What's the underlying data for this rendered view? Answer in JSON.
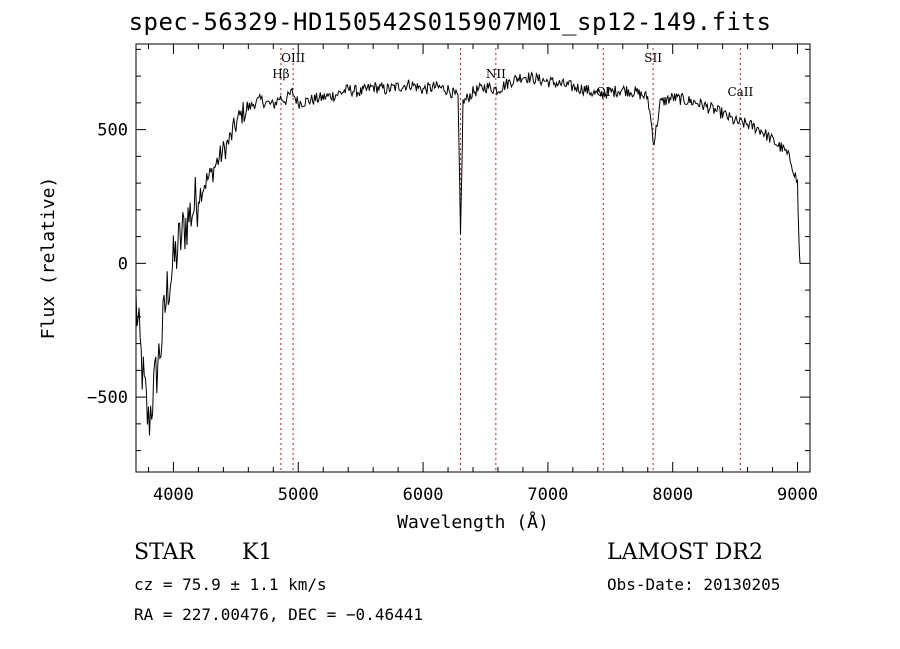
{
  "chart_data": {
    "type": "line",
    "title": "spec-56329-HD150542S015907M01_sp12-149.fits",
    "xlabel": "Wavelength (Å)",
    "ylabel": "Flux (relative)",
    "xlim": [
      3700,
      9100
    ],
    "ylim": [
      -780,
      820
    ],
    "x_ticks": [
      4000,
      5000,
      6000,
      7000,
      8000,
      9000
    ],
    "x_tick_labels": [
      "4000",
      "5000",
      "6000",
      "7000",
      "8000",
      "9000"
    ],
    "y_ticks": [
      -500,
      0,
      500
    ],
    "y_tick_labels": [
      "−500",
      "0",
      "500"
    ],
    "grid": false,
    "line_color": "#000000",
    "line_marker_color": "#b22222",
    "spectrum": {
      "name": "",
      "x": [
        3700,
        3750,
        3800,
        3850,
        3900,
        3950,
        4000,
        4050,
        4100,
        4150,
        4200,
        4250,
        4300,
        4350,
        4400,
        4450,
        4500,
        4550,
        4600,
        4650,
        4700,
        4750,
        4800,
        4850,
        4900,
        4950,
        5000,
        5100,
        5200,
        5300,
        5400,
        5500,
        5600,
        5700,
        5800,
        5900,
        6000,
        6100,
        6200,
        6280,
        6300,
        6320,
        6400,
        6500,
        6600,
        6700,
        6800,
        6900,
        7000,
        7100,
        7200,
        7300,
        7400,
        7500,
        7600,
        7700,
        7800,
        7850,
        7900,
        8000,
        8100,
        8200,
        8300,
        8400,
        8500,
        8600,
        8700,
        8800,
        8900,
        8950,
        9000,
        9010,
        9020
      ],
      "y": [
        -150,
        -400,
        -600,
        -450,
        -300,
        -100,
        0,
        80,
        150,
        200,
        250,
        300,
        330,
        380,
        420,
        460,
        520,
        560,
        580,
        600,
        610,
        600,
        590,
        620,
        610,
        640,
        600,
        610,
        620,
        630,
        650,
        640,
        660,
        650,
        660,
        670,
        650,
        660,
        650,
        620,
        100,
        600,
        640,
        660,
        650,
        680,
        700,
        690,
        680,
        670,
        660,
        650,
        630,
        640,
        650,
        640,
        620,
        450,
        600,
        620,
        610,
        600,
        580,
        560,
        530,
        520,
        500,
        460,
        420,
        380,
        300,
        100,
        0
      ]
    },
    "line_annotations": [
      {
        "label": "Hβ",
        "x": 4861
      },
      {
        "label": "OIII",
        "x": 4959
      },
      {
        "label": "",
        "x": 6300
      },
      {
        "label": "NII",
        "x": 6583
      },
      {
        "label": "OI",
        "x": 7444
      },
      {
        "label": "SII",
        "x": 7843
      },
      {
        "label": "CaII",
        "x": 8542
      }
    ],
    "annotation_labels": [
      "Hβ",
      "OIII",
      "NII",
      "OI",
      "SII",
      "CaII"
    ]
  },
  "info": {
    "class_label": "STAR",
    "subclass_label": "K1",
    "survey_label": "LAMOST DR2",
    "cz_text": "cz = 75.9 ± 1.1 km/s",
    "obs_date_text": "Obs-Date: 20130205",
    "coord_text": "RA = 227.00476, DEC =  −0.46441"
  }
}
